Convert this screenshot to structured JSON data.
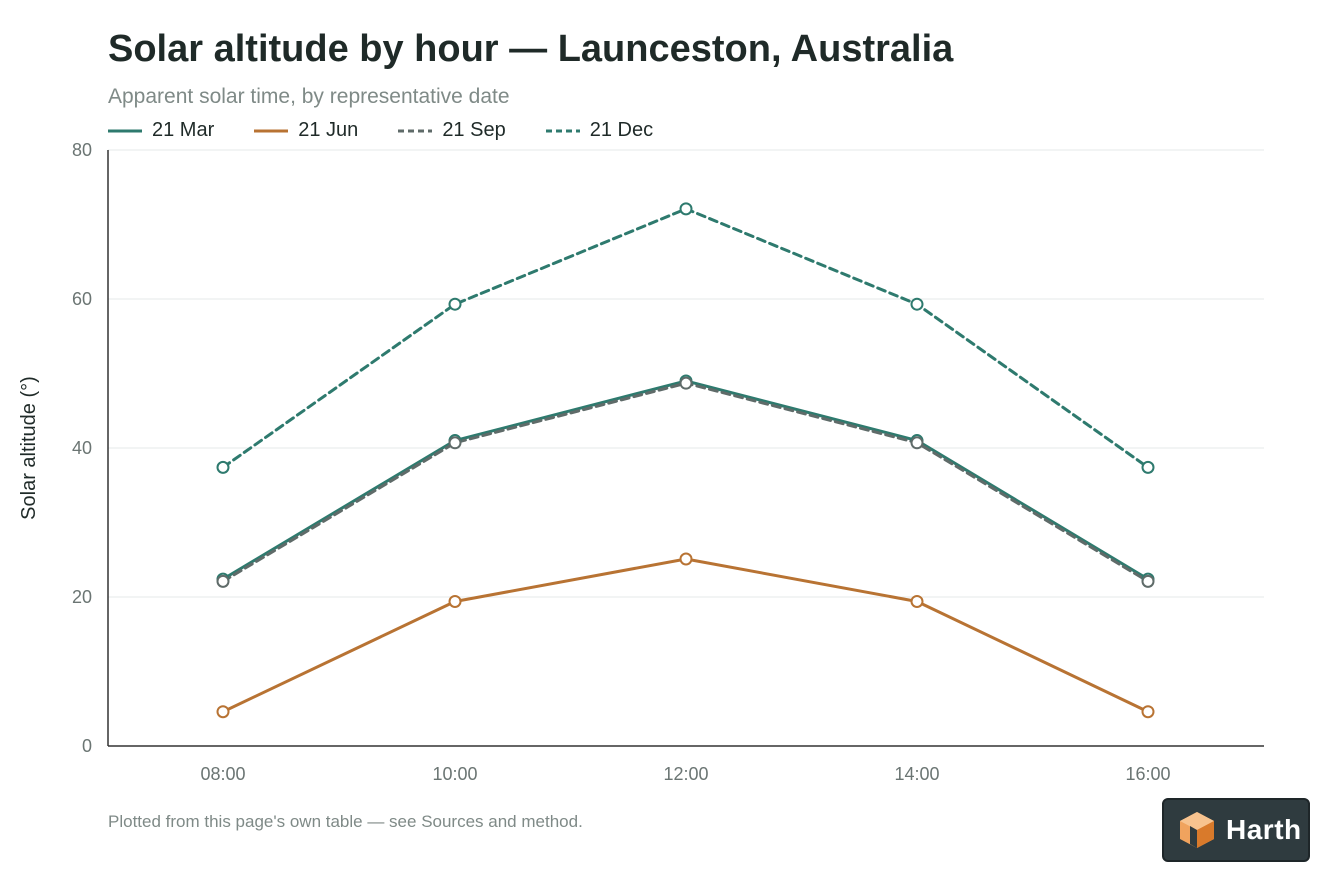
{
  "title": "Solar altitude by hour — Launceston, Australia",
  "subtitle": "Apparent solar time, by representative date",
  "footnote": "Plotted from this page's own table — see Sources and method.",
  "badge": {
    "text": "Harth",
    "icon": "harth-logo-icon"
  },
  "colors": {
    "teal": "#2e7a6e",
    "orange": "#b87333",
    "grey": "#5f6b69",
    "axis": "#333333",
    "grid": "#e6e9e8",
    "tick_text": "#6b7573"
  },
  "chart_data": {
    "type": "line",
    "title": "Solar altitude by hour — Launceston, Australia",
    "subtitle": "Apparent solar time, by representative date",
    "xlabel": "",
    "ylabel": "Solar altitude (°)",
    "categories": [
      "08:00",
      "10:00",
      "12:00",
      "14:00",
      "16:00"
    ],
    "ylim": [
      0,
      80
    ],
    "yticks": [
      0,
      20,
      40,
      60,
      80
    ],
    "grid": true,
    "legend_position": "top-left",
    "series": [
      {
        "name": "21 Mar",
        "values": [
          22.4,
          41.0,
          49.0,
          41.0,
          22.4
        ],
        "color": "#2e7a6e",
        "dash": "solid"
      },
      {
        "name": "21 Jun",
        "values": [
          4.6,
          19.4,
          25.1,
          19.4,
          4.6
        ],
        "color": "#b87333",
        "dash": "solid"
      },
      {
        "name": "21 Sep",
        "values": [
          22.1,
          40.7,
          48.7,
          40.7,
          22.1
        ],
        "color": "#5f6b69",
        "dash": "dashed"
      },
      {
        "name": "21 Dec",
        "values": [
          37.4,
          59.3,
          72.1,
          59.3,
          37.4
        ],
        "color": "#2e7a6e",
        "dash": "dashed"
      }
    ]
  }
}
